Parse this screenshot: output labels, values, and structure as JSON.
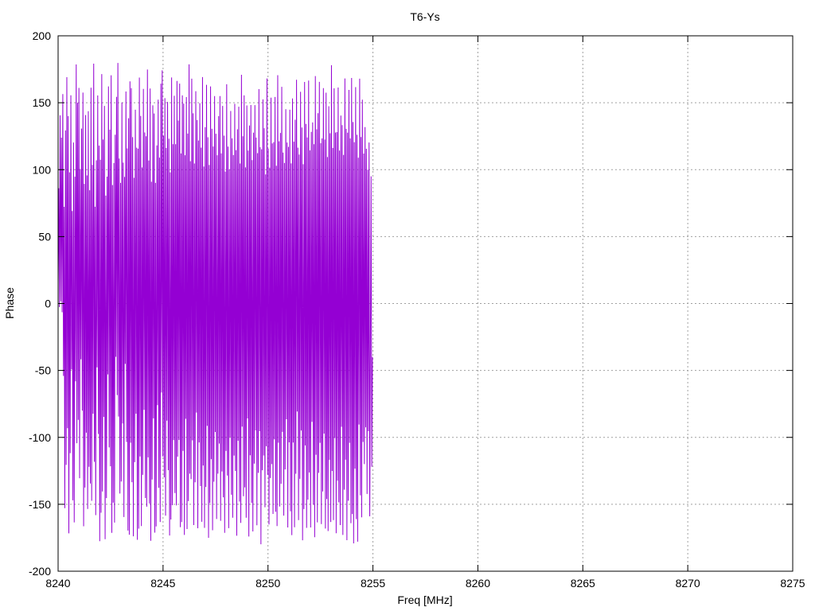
{
  "chart_data": {
    "type": "line",
    "title": "T6-Ys",
    "xlabel": "Freq [MHz]",
    "ylabel": "Phase",
    "xlim": [
      8240,
      8275
    ],
    "ylim": [
      -200,
      200
    ],
    "xticks": [
      8240,
      8245,
      8250,
      8255,
      8260,
      8265,
      8270,
      8275
    ],
    "yticks": [
      -200,
      -150,
      -100,
      -50,
      0,
      50,
      100,
      150,
      200
    ],
    "grid": true,
    "legend": "none",
    "line_color": "#9400d3",
    "series": [
      {
        "x_start": 8240.0,
        "x_step": 0.032,
        "values": [
          15.0,
          86.1,
          -2.7,
          140.6,
          1.6,
          123.9,
          -6.5,
          156.5,
          -54.1,
          72.2,
          -152.9,
          129.3,
          -120.6,
          169.1,
          -93.2,
          140.0,
          -171.7,
          98.0,
          -111.8,
          155.6,
          -49.2,
          69.1,
          -147.0,
          120.3,
          -163.5,
          94.7,
          -58.2,
          178.6,
          -104.4,
          150.0,
          -86.9,
          161.1,
          -130.5,
          100.5,
          -41.7,
          130.7,
          -80.0,
          157.6,
          -166.4,
          89.4,
          -137.5,
          140.8,
          -96.5,
          95.7,
          -153.5,
          143.7,
          -122.0,
          84.6,
          -134.5,
          161.2,
          -147.4,
          103.6,
          -82.3,
          179.2,
          -118.3,
          72.3,
          -158.1,
          107.0,
          -47.7,
          155.4,
          -97.5,
          118.0,
          -177.6,
          107.4,
          -156.3,
          171.4,
          -140.4,
          122.5,
          -84.7,
          147.6,
          -176.1,
          80.6,
          -145.4,
          94.8,
          -53.0,
          162.2,
          -107.5,
          129.9,
          -121.6,
          170.5,
          -171.3,
          88.5,
          -148.7,
          105.0,
          -163.7,
          126.1,
          -39.8,
          154.4,
          -68.4,
          179.7,
          -84.5,
          108.3,
          -142.0,
          90.1,
          -133.0,
          150.2,
          -89.7,
          105.3,
          -159.5,
          94.6,
          -45.1,
          158.4,
          -103.5,
          115.9,
          -169.6,
          138.4,
          -172.7,
          166.0,
          -104.0,
          160.9,
          -133.5,
          124.3,
          -173.9,
          93.9,
          -118.5,
          144.8,
          -82.3,
          116.4,
          -176.5,
          115.7,
          -168.2,
          168.8,
          -114.3,
          140.1,
          -166.3,
          101.6,
          -128.0,
          160.3,
          -79.4,
          127.8,
          -145.3,
          125.0,
          -151.8,
          174.8,
          -114.9,
          106.8,
          -149.4,
          160.6,
          -177.3,
          90.9,
          -131.5,
          148.1,
          -85.8,
          142.0,
          -171.2,
          90.1,
          -166.6,
          118.1,
          -76.0,
          152.3,
          -137.7,
          109.0,
          -163.2,
          164.3,
          -66.6,
          174.2,
          -114.3,
          125.4,
          -129.9,
          153.4,
          -158.5,
          116.2,
          -87.5,
          150.6,
          -124.5,
          123.1,
          -173.3,
          98.0,
          -161.4,
          168.9,
          -150.7,
          119.0,
          -102.1,
          155.2,
          -141.6,
          119.0,
          -150.8,
          166.3,
          -114.4,
          136.7,
          -101.9,
          164.3,
          -167.1,
          112.1,
          -163.3,
          155.5,
          -110.1,
          149.3,
          -172.9,
          110.8,
          -86.1,
          154.2,
          -168.5,
          127.0,
          -147.6,
          178.7,
          -127.1,
          106.3,
          -131.2,
          168.0,
          -102.2,
          142.1,
          -165.5,
          104.6,
          -133.6,
          158.6,
          -81.5,
          137.1,
          -167.9,
          121.8,
          -103.8,
          149.7,
          -136.4,
          116.4,
          -163.1,
          169.2,
          -121.0,
          102.3,
          -167.6,
          131.7,
          -137.1,
          163.4,
          -91.4,
          124.2,
          -175.0,
          103.5,
          -149.1,
          162.2,
          -116.3,
          130.5,
          -169.4,
          117.3,
          -133.1,
          155.0,
          -96.0,
          126.8,
          -161.0,
          110.8,
          -127.1,
          140.0,
          -104.6,
          155.0,
          -162.3,
          112.2,
          -125.5,
          147.6,
          -144.8,
          125.4,
          -171.3,
          98.6,
          -110.1,
          163.8,
          -128.5,
          117.2,
          -167.8,
          100.3,
          -99.8,
          143.8,
          -142.9,
          123.4,
          -160.0,
          110.9,
          -113.6,
          149.2,
          -125.1,
          114.6,
          -173.5,
          130.2,
          -102.5,
          147.0,
          -148.0,
          104.6,
          -163.9,
          170.9,
          -92.0,
          125.0,
          -144.0,
          155.5,
          -137.4,
          101.7,
          -160.0,
          148.0,
          -85.9,
          114.3,
          -174.1,
          133.0,
          -113.4,
          148.3,
          -148.9,
          107.1,
          -170.3,
          127.6,
          -119.6,
          148.2,
          -94.9,
          124.0,
          -165.7,
          112.3,
          -126.5,
          160.2,
          -95.4,
          116.8,
          -179.9,
          115.2,
          -124.6,
          152.5,
          -113.6,
          131.0,
          -152.2,
          96.4,
          -106.6,
          168.1,
          -127.9,
          115.7,
          -165.1,
          101.5,
          -130.4,
          153.8,
          -120.0,
          119.6,
          -157.2,
          120.6,
          -101.5,
          154.3,
          -155.6,
          102.9,
          -166.3,
          170.6,
          -104.0,
          121.2,
          -151.6,
          127.4,
          -134.7,
          161.9,
          -95.9,
          112.8,
          -158.5,
          105.0,
          -123.9,
          145.2,
          -86.5,
          120.3,
          -167.3,
          117.0,
          -103.7,
          144.8,
          -155.3,
          104.7,
          -173.0,
          153.2,
          -103.9,
          120.9,
          -167.2,
          137.3,
          -127.2,
          167.2,
          -80.7,
          116.4,
          -161.8,
          111.3,
          -131.0,
          158.2,
          -94.9,
          131.5,
          -176.9,
          104.1,
          -153.6,
          165.5,
          -106.0,
          134.2,
          -167.6,
          124.1,
          -146.5,
          166.6,
          -126.2,
          114.4,
          -167.3,
          128.2,
          -88.4,
          135.3,
          -150.3,
          119.0,
          -174.6,
          169.9,
          -113.0,
          130.2,
          -163.5,
          142.2,
          -126.5,
          165.6,
          -104.1,
          119.8,
          -164.8,
          123.3,
          -140.4,
          160.9,
          -97.2,
          122.5,
          -168.1,
          157.5,
          -146.1,
          109.4,
          -170.0,
          147.4,
          -116.8,
          127.2,
          -163.2,
          178.0,
          -125.1,
          116.2,
          -161.8,
          160.8,
          -100.5,
          127.7,
          -171.6,
          128.1,
          -132.4,
          161.4,
          -148.5,
          114.3,
          -165.5,
          140.4,
          -92.1,
          133.3,
          -172.9,
          111.0,
          -139.1,
          168.1,
          -116.7,
          130.5,
          -176.8,
          127.6,
          -147.3,
          159.6,
          -104.1,
          123.3,
          -164.1,
          168.5,
          -157.3,
          135.6,
          -179.2,
          120.5,
          -123.3,
          161.7,
          -161.1,
          126.1,
          -177.9,
          108.9,
          -90.4,
          168.0,
          -143.3,
          124.4,
          -159.7,
          152.3,
          -103.4,
          112.0,
          -120.0,
          131.8,
          -92.5,
          115.6,
          -142.3,
          100.0,
          -95.4,
          120.3,
          -159.0,
          -30.0,
          95.0,
          -122.0,
          -40.0
        ]
      }
    ]
  }
}
